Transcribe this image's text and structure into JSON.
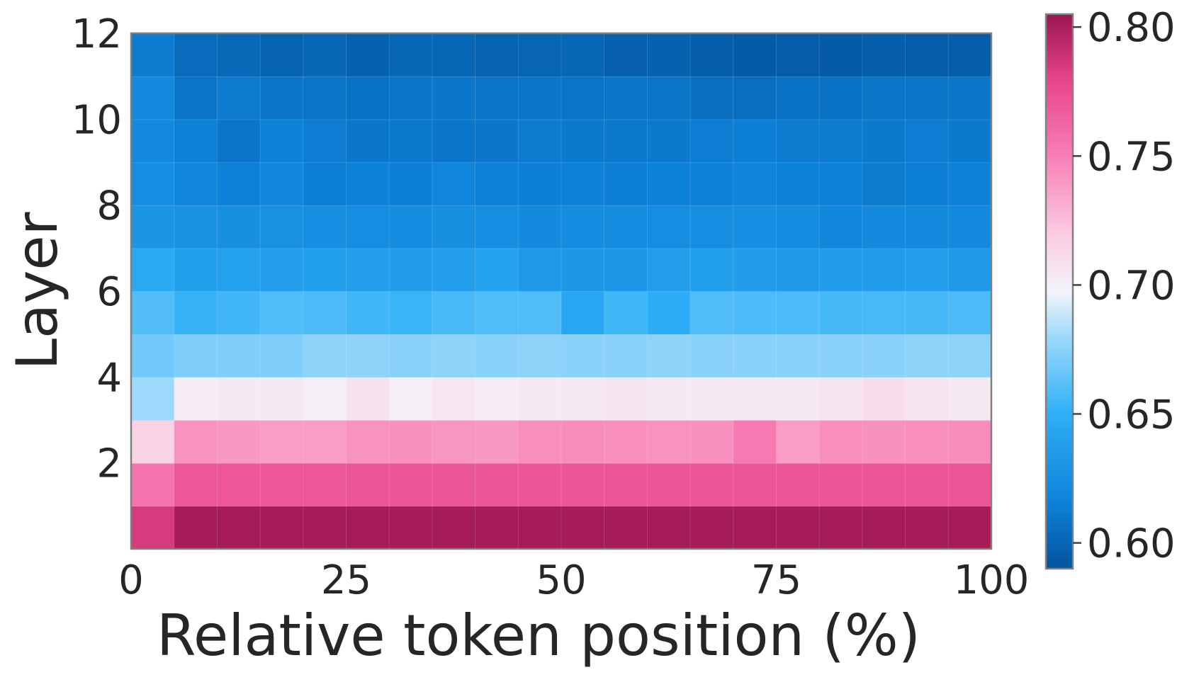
{
  "chart_data": {
    "type": "heatmap",
    "xlabel": "Relative token position (%)",
    "ylabel": "Layer",
    "xlim": [
      0,
      100
    ],
    "ylim": [
      0,
      12
    ],
    "x_ticks": [
      "0",
      "25",
      "50",
      "75",
      "100"
    ],
    "x_tick_values": [
      0,
      25,
      50,
      75,
      100
    ],
    "y_ticks": [
      "2",
      "4",
      "6",
      "8",
      "10",
      "12"
    ],
    "y_tick_values": [
      2,
      4,
      6,
      8,
      10,
      12
    ],
    "x_bins": 20,
    "layers": [
      1,
      2,
      3,
      4,
      5,
      6,
      7,
      8,
      9,
      10,
      11,
      12
    ],
    "colorbar": {
      "min": 0.59,
      "max": 0.805,
      "ticks": [
        "0.60",
        "0.65",
        "0.70",
        "0.75",
        "0.80"
      ],
      "tick_values": [
        0.6,
        0.65,
        0.7,
        0.75,
        0.8
      ],
      "colors": [
        "#03539c",
        "#0d82d9",
        "#2fb0f7",
        "#9fd9fb",
        "#f3f4fa",
        "#fbcde2",
        "#f77cb4",
        "#e8458c",
        "#9a1550"
      ],
      "stops": [
        0,
        0.12,
        0.28,
        0.42,
        0.5,
        0.6,
        0.75,
        0.88,
        1
      ]
    },
    "values": [
      [
        0.785,
        0.801,
        0.801,
        0.801,
        0.801,
        0.801,
        0.801,
        0.801,
        0.801,
        0.801,
        0.801,
        0.801,
        0.801,
        0.801,
        0.801,
        0.801,
        0.801,
        0.801,
        0.801,
        0.801
      ],
      [
        0.755,
        0.77,
        0.77,
        0.77,
        0.77,
        0.771,
        0.771,
        0.771,
        0.771,
        0.771,
        0.771,
        0.771,
        0.771,
        0.771,
        0.771,
        0.771,
        0.771,
        0.771,
        0.771,
        0.771
      ],
      [
        0.715,
        0.742,
        0.74,
        0.738,
        0.738,
        0.742,
        0.743,
        0.741,
        0.74,
        0.744,
        0.745,
        0.744,
        0.742,
        0.743,
        0.753,
        0.738,
        0.744,
        0.743,
        0.744,
        0.745
      ],
      [
        0.68,
        0.702,
        0.703,
        0.703,
        0.701,
        0.708,
        0.701,
        0.705,
        0.702,
        0.703,
        0.704,
        0.706,
        0.703,
        0.703,
        0.704,
        0.703,
        0.706,
        0.71,
        0.706,
        0.703
      ],
      [
        0.668,
        0.672,
        0.672,
        0.672,
        0.676,
        0.676,
        0.675,
        0.676,
        0.675,
        0.676,
        0.675,
        0.675,
        0.676,
        0.675,
        0.675,
        0.675,
        0.675,
        0.675,
        0.676,
        0.676
      ],
      [
        0.66,
        0.652,
        0.655,
        0.659,
        0.658,
        0.655,
        0.653,
        0.657,
        0.659,
        0.659,
        0.643,
        0.655,
        0.648,
        0.659,
        0.658,
        0.658,
        0.656,
        0.657,
        0.656,
        0.658
      ],
      [
        0.645,
        0.638,
        0.639,
        0.637,
        0.638,
        0.637,
        0.636,
        0.637,
        0.64,
        0.633,
        0.632,
        0.631,
        0.637,
        0.638,
        0.636,
        0.634,
        0.635,
        0.635,
        0.637,
        0.634
      ],
      [
        0.63,
        0.628,
        0.626,
        0.627,
        0.625,
        0.624,
        0.623,
        0.626,
        0.624,
        0.622,
        0.623,
        0.623,
        0.624,
        0.624,
        0.625,
        0.623,
        0.62,
        0.622,
        0.622,
        0.622
      ],
      [
        0.624,
        0.618,
        0.615,
        0.62,
        0.614,
        0.616,
        0.614,
        0.618,
        0.615,
        0.614,
        0.615,
        0.614,
        0.616,
        0.615,
        0.617,
        0.616,
        0.615,
        0.612,
        0.614,
        0.615
      ],
      [
        0.622,
        0.615,
        0.609,
        0.616,
        0.613,
        0.61,
        0.611,
        0.609,
        0.61,
        0.612,
        0.611,
        0.611,
        0.611,
        0.613,
        0.614,
        0.612,
        0.612,
        0.611,
        0.613,
        0.611
      ],
      [
        0.622,
        0.609,
        0.612,
        0.61,
        0.609,
        0.607,
        0.609,
        0.61,
        0.608,
        0.609,
        0.608,
        0.609,
        0.608,
        0.606,
        0.605,
        0.607,
        0.607,
        0.608,
        0.608,
        0.608
      ],
      [
        0.612,
        0.603,
        0.602,
        0.599,
        0.601,
        0.598,
        0.601,
        0.601,
        0.599,
        0.6,
        0.601,
        0.597,
        0.598,
        0.596,
        0.594,
        0.595,
        0.594,
        0.596,
        0.595,
        0.595
      ]
    ]
  }
}
